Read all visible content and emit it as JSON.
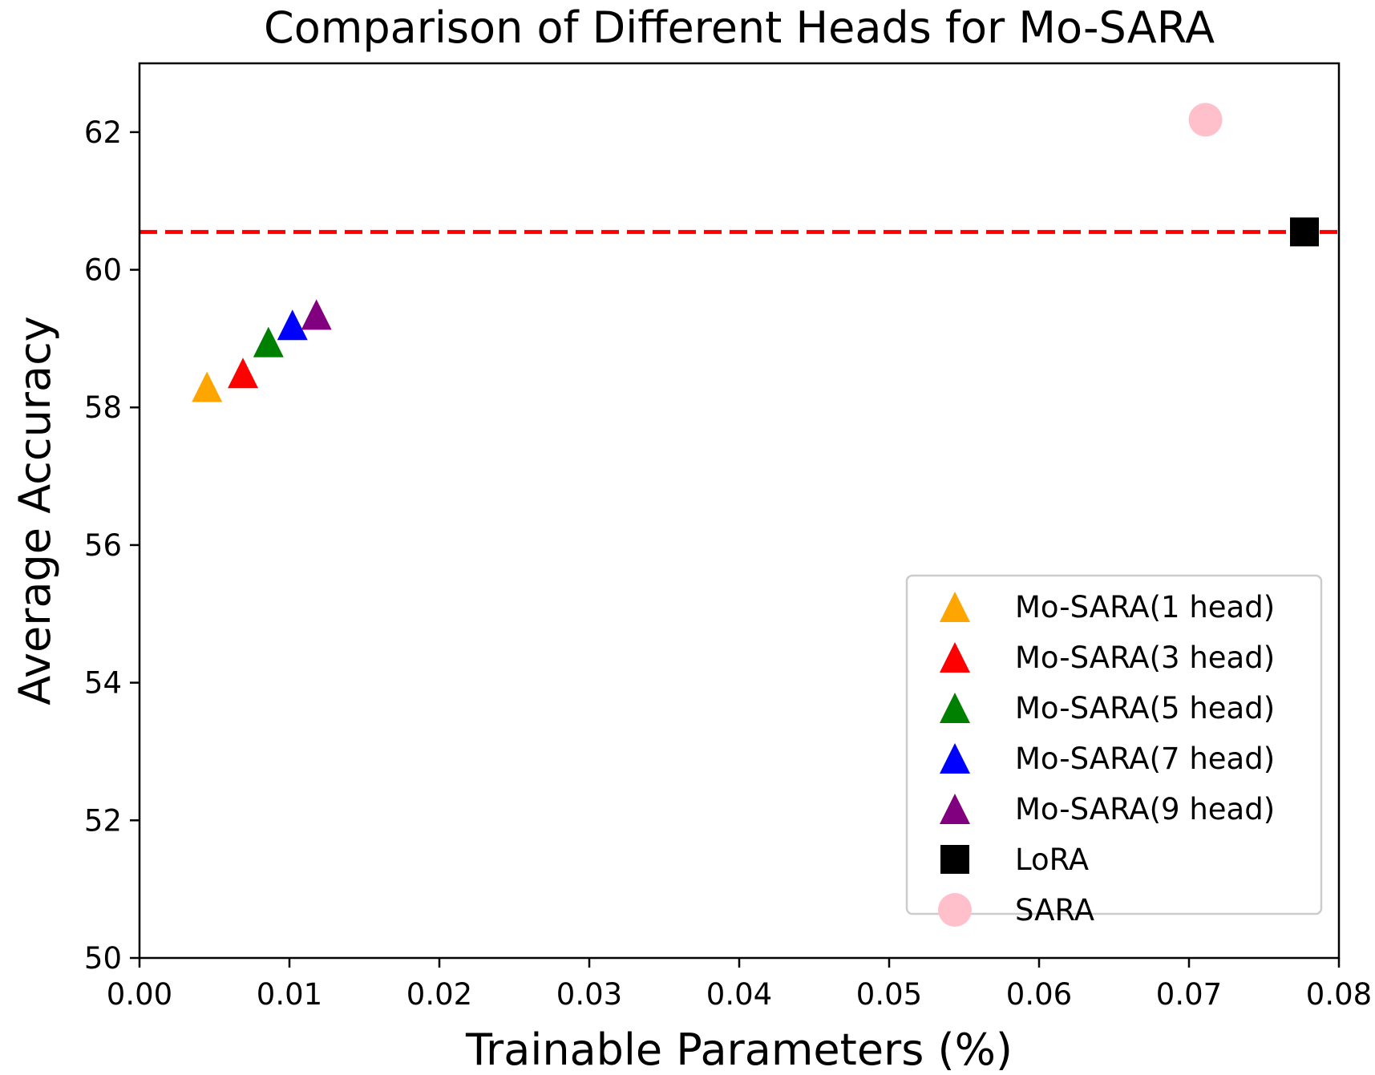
{
  "chart_data": {
    "type": "scatter",
    "title": "Comparison of Different Heads for Mo-SARA",
    "xlabel": "Trainable Parameters (%)",
    "ylabel": "Average Accuracy",
    "xlim": [
      0.0,
      0.08
    ],
    "ylim": [
      50,
      63
    ],
    "xticks": [
      "0.00",
      "0.01",
      "0.02",
      "0.03",
      "0.04",
      "0.05",
      "0.06",
      "0.07",
      "0.08"
    ],
    "yticks": [
      "50",
      "52",
      "54",
      "56",
      "58",
      "60",
      "62"
    ],
    "grid": false,
    "legend_position": "lower-right",
    "series": [
      {
        "name": "Mo-SARA(1 head)",
        "marker": "triangle",
        "color": "#FFA500",
        "x": 0.0045,
        "y": 58.3
      },
      {
        "name": "Mo-SARA(3 head)",
        "marker": "triangle",
        "color": "#FF0000",
        "x": 0.0069,
        "y": 58.5
      },
      {
        "name": "Mo-SARA(5 head)",
        "marker": "triangle",
        "color": "#008000",
        "x": 0.0086,
        "y": 58.95
      },
      {
        "name": "Mo-SARA(7 head)",
        "marker": "triangle",
        "color": "#0000FF",
        "x": 0.0102,
        "y": 59.2
      },
      {
        "name": "Mo-SARA(9 head)",
        "marker": "triangle",
        "color": "#800080",
        "x": 0.0118,
        "y": 59.35
      },
      {
        "name": "LoRA",
        "marker": "square",
        "color": "#000000",
        "x": 0.0777,
        "y": 60.55
      },
      {
        "name": "SARA",
        "marker": "circle",
        "color": "#FFC0CB",
        "x": 0.0711,
        "y": 62.18
      }
    ],
    "reference_line": {
      "y": 60.55,
      "color": "#FF0000",
      "style": "dashed"
    }
  }
}
